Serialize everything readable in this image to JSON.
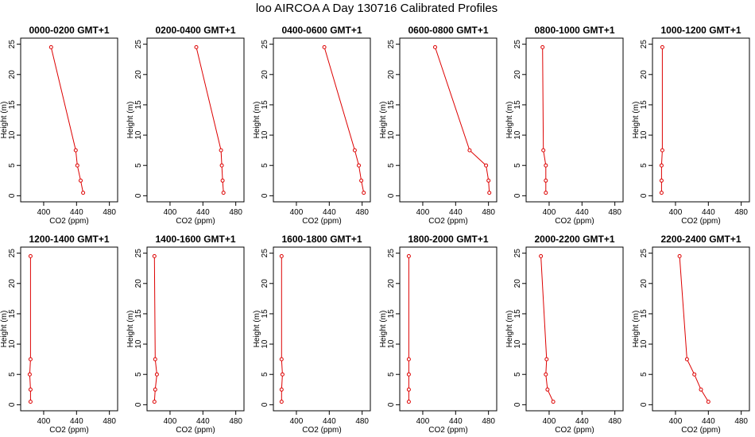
{
  "title": "loo AIRCOA A  Day 130716  Calibrated Profiles",
  "chart_data": {
    "type": "line",
    "title": "loo AIRCOA A  Day 130716  Calibrated Profiles",
    "xlabel": "CO2 (ppm)",
    "ylabel": "Height (m)",
    "xlim": [
      372,
      490
    ],
    "ylim": [
      -1,
      26
    ],
    "xticks": [
      400,
      440,
      480
    ],
    "yticks": [
      0,
      5,
      10,
      15,
      20,
      25
    ],
    "line_color": "#dd0000",
    "heights": [
      24.5,
      7.5,
      5,
      2.5,
      0.5
    ],
    "panels": [
      {
        "title": "0000-0200 GMT+1",
        "co2": [
          409,
          439,
          441,
          445,
          448
        ]
      },
      {
        "title": "0200-0400 GMT+1",
        "co2": [
          432,
          462,
          463,
          464,
          465
        ]
      },
      {
        "title": "0400-0600 GMT+1",
        "co2": [
          434,
          471,
          476,
          479,
          482
        ]
      },
      {
        "title": "0600-0800 GMT+1",
        "co2": [
          415,
          457,
          477,
          480,
          481
        ]
      },
      {
        "title": "0800-1000 GMT+1",
        "co2": [
          392,
          393,
          396,
          396,
          396
        ]
      },
      {
        "title": "1000-1200 GMT+1",
        "co2": [
          384,
          384,
          383,
          383,
          383
        ]
      },
      {
        "title": "1200-1400 GMT+1",
        "co2": [
          384,
          384,
          383,
          384,
          384
        ]
      },
      {
        "title": "1400-1600 GMT+1",
        "co2": [
          381,
          382,
          384,
          382,
          381
        ]
      },
      {
        "title": "1600-1800 GMT+1",
        "co2": [
          382,
          382,
          383,
          382,
          382
        ]
      },
      {
        "title": "1800-2000 GMT+1",
        "co2": [
          383,
          383,
          383,
          383,
          383
        ]
      },
      {
        "title": "2000-2200 GMT+1",
        "co2": [
          390,
          397,
          396,
          398,
          405
        ]
      },
      {
        "title": "2200-2400 GMT+1",
        "co2": [
          405,
          414,
          423,
          431,
          440
        ]
      }
    ]
  }
}
